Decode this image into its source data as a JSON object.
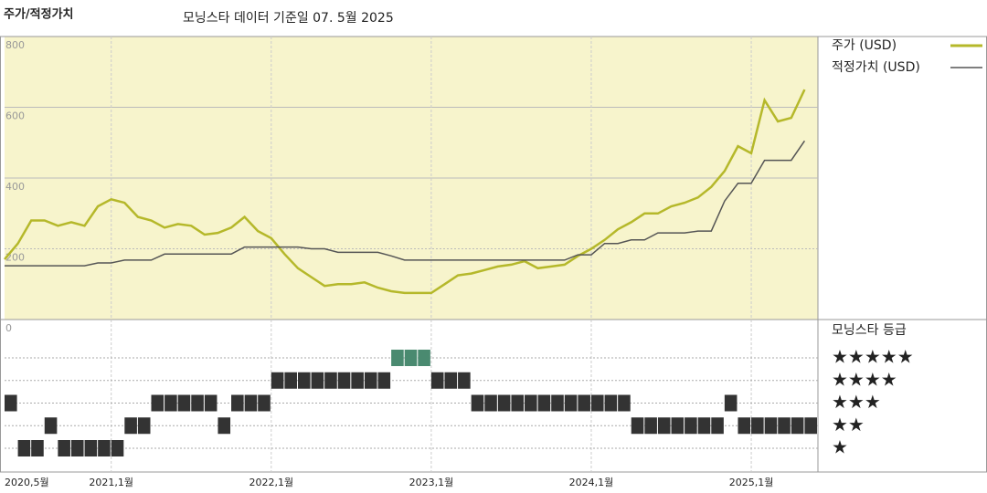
{
  "chart_data": {
    "type": "line",
    "title": "주가/적정가치",
    "subtitle": "모닝스타 데이터 기준일 07. 5월 2025",
    "x": [
      "2020-05",
      "2020-06",
      "2020-07",
      "2020-08",
      "2020-09",
      "2020-10",
      "2020-11",
      "2020-12",
      "2021-01",
      "2021-02",
      "2021-03",
      "2021-04",
      "2021-05",
      "2021-06",
      "2021-07",
      "2021-08",
      "2021-09",
      "2021-10",
      "2021-11",
      "2021-12",
      "2022-01",
      "2022-02",
      "2022-03",
      "2022-04",
      "2022-05",
      "2022-06",
      "2022-07",
      "2022-08",
      "2022-09",
      "2022-10",
      "2022-11",
      "2022-12",
      "2023-01",
      "2023-02",
      "2023-03",
      "2023-04",
      "2023-05",
      "2023-06",
      "2023-07",
      "2023-08",
      "2023-09",
      "2023-10",
      "2023-11",
      "2023-12",
      "2024-01",
      "2024-02",
      "2024-03",
      "2024-04",
      "2024-05",
      "2024-06",
      "2024-07",
      "2024-08",
      "2024-09",
      "2024-10",
      "2024-11",
      "2024-12",
      "2025-01",
      "2025-02",
      "2025-03",
      "2025-04",
      "2025-05"
    ],
    "series": [
      {
        "name": "주가 (USD)",
        "color": "#b5b82a",
        "values": [
          170,
          215,
          280,
          280,
          265,
          275,
          265,
          320,
          340,
          330,
          290,
          280,
          260,
          270,
          265,
          240,
          245,
          260,
          290,
          250,
          230,
          185,
          145,
          120,
          95,
          100,
          100,
          105,
          90,
          80,
          75,
          75,
          75,
          100,
          125,
          130,
          140,
          150,
          155,
          165,
          145,
          150,
          155,
          180,
          200,
          225,
          255,
          275,
          300,
          300,
          320,
          330,
          345,
          375,
          420,
          490,
          470,
          620,
          560,
          570,
          650
        ]
      },
      {
        "name": "적정가치 (USD)",
        "color": "#555555",
        "values": [
          152,
          152,
          152,
          152,
          152,
          152,
          152,
          160,
          160,
          168,
          168,
          168,
          185,
          185,
          185,
          185,
          185,
          185,
          205,
          205,
          205,
          205,
          205,
          200,
          200,
          190,
          190,
          190,
          190,
          180,
          168,
          168,
          168,
          168,
          168,
          168,
          168,
          168,
          168,
          168,
          168,
          168,
          168,
          183,
          183,
          215,
          215,
          225,
          225,
          245,
          245,
          245,
          250,
          250,
          335,
          385,
          385,
          450,
          450,
          450,
          505
        ]
      }
    ],
    "xlim": [
      "2020-05",
      "2025-06"
    ],
    "xticks": [
      {
        "value": "2020-05",
        "label": "2020,5월"
      },
      {
        "value": "2021-01",
        "label": "2021,1월"
      },
      {
        "value": "2022-01",
        "label": "2022,1월"
      },
      {
        "value": "2023-01",
        "label": "2023,1월"
      },
      {
        "value": "2024-01",
        "label": "2024,1월"
      },
      {
        "value": "2025-01",
        "label": "2025,1월"
      }
    ],
    "ylim": [
      0,
      800
    ],
    "yticks": [
      0,
      200,
      400,
      600,
      800
    ],
    "grid": true,
    "background": "#f7f4cc",
    "rating_title": "모닝스타 등급",
    "rating_labels": [
      "★★★★★",
      "★★★★",
      "★★★",
      "★★",
      "★"
    ],
    "rating_colors": {
      "5": "#4a8a70",
      "other": "#333333"
    },
    "ratings": [
      3,
      1,
      1,
      2,
      1,
      1,
      1,
      1,
      1,
      2,
      2,
      3,
      3,
      3,
      3,
      3,
      2,
      3,
      3,
      3,
      4,
      4,
      4,
      4,
      4,
      4,
      4,
      4,
      4,
      5,
      5,
      5,
      4,
      4,
      4,
      3,
      3,
      3,
      3,
      3,
      3,
      3,
      3,
      3,
      3,
      3,
      3,
      2,
      2,
      2,
      2,
      2,
      2,
      2,
      3,
      2,
      2,
      2,
      2,
      2,
      2
    ]
  }
}
